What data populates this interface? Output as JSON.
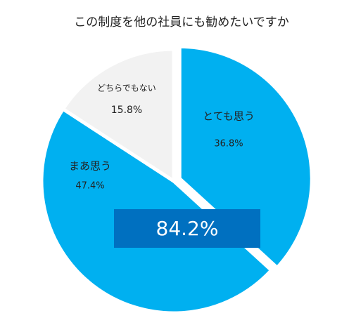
{
  "chart_data": {
    "type": "pie",
    "title": "この制度を他の社員にも勧めたいですか",
    "categories": [
      "とても思う",
      "まあ思う",
      "どちらでもない"
    ],
    "values": [
      36.8,
      47.4,
      15.8
    ],
    "value_labels": [
      "36.8%",
      "47.4%",
      "15.8%"
    ],
    "colors": [
      "#00b0f0",
      "#00b0f0",
      "#f2f2f2"
    ],
    "annotation": "84.2%"
  }
}
